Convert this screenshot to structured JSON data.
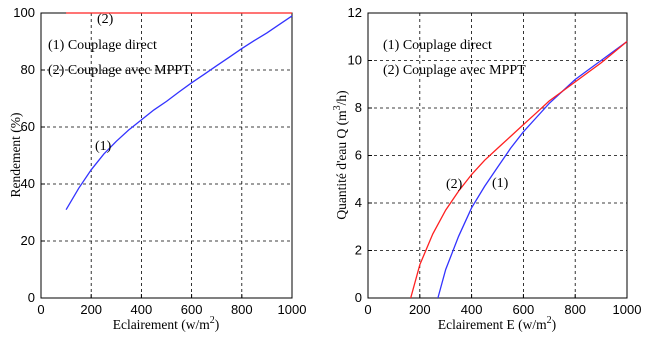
{
  "chart_data": [
    {
      "type": "line",
      "xlabel": "Eclairement (w/m",
      "xlabel_sup": "2",
      "xlabel_end": ")",
      "ylabel": "Rendement (%)",
      "xlim": [
        0,
        1000
      ],
      "ylim": [
        0,
        100
      ],
      "xticks": [
        "0",
        "200",
        "400",
        "600",
        "800",
        "1000"
      ],
      "yticks": [
        "0",
        "20",
        "40",
        "60",
        "80",
        "100"
      ],
      "grid": true,
      "legend": [
        "(1) Couplage direct",
        "(2) Couplage avec MPPT"
      ],
      "series": [
        {
          "name": "(1)",
          "label": "(1)",
          "color": "#3333ff",
          "x": [
            100,
            150,
            200,
            250,
            300,
            350,
            400,
            450,
            500,
            550,
            600,
            650,
            700,
            750,
            800,
            850,
            900,
            950,
            1000
          ],
          "y": [
            31,
            38.5,
            45,
            50.5,
            55,
            59,
            62.5,
            66,
            69,
            72.3,
            75.5,
            78.5,
            81.5,
            84.5,
            87.5,
            90.3,
            93,
            96,
            99
          ]
        },
        {
          "name": "(2)",
          "label": "(2)",
          "color": "#ff2020",
          "x": [
            100,
            1000
          ],
          "y": [
            100,
            100
          ]
        }
      ]
    },
    {
      "type": "line",
      "xlabel": "Eclairement E (w/m",
      "xlabel_sup": "2",
      "xlabel_end": ")",
      "ylabel": "Quantité d'eau Q (m",
      "ylabel_sup": "3",
      "ylabel_end": "/h)",
      "xlim": [
        0,
        1000
      ],
      "ylim": [
        0,
        12
      ],
      "xticks": [
        "0",
        "200",
        "400",
        "600",
        "800",
        "1000"
      ],
      "yticks": [
        "0",
        "2",
        "4",
        "6",
        "8",
        "10",
        "12"
      ],
      "grid": true,
      "legend": [
        "(1) Couplage direct",
        "(2) Couplage avec MPPT"
      ],
      "series": [
        {
          "name": "(1)",
          "label": "(1)",
          "color": "#3333ff",
          "x": [
            270,
            300,
            350,
            400,
            450,
            500,
            550,
            600,
            650,
            700,
            750,
            800,
            850,
            900,
            950,
            1000
          ],
          "y": [
            0,
            1.2,
            2.6,
            3.8,
            4.7,
            5.5,
            6.3,
            7.0,
            7.6,
            8.2,
            8.7,
            9.2,
            9.6,
            10.0,
            10.4,
            10.8
          ]
        },
        {
          "name": "(2)",
          "label": "(2)",
          "color": "#ff2020",
          "x": [
            165,
            200,
            250,
            300,
            350,
            400,
            450,
            500,
            550,
            600,
            650,
            700,
            750,
            800,
            850,
            900,
            950,
            1000
          ],
          "y": [
            0,
            1.4,
            2.7,
            3.7,
            4.5,
            5.2,
            5.8,
            6.3,
            6.8,
            7.3,
            7.8,
            8.3,
            8.7,
            9.1,
            9.5,
            9.9,
            10.35,
            10.8
          ]
        }
      ]
    }
  ]
}
